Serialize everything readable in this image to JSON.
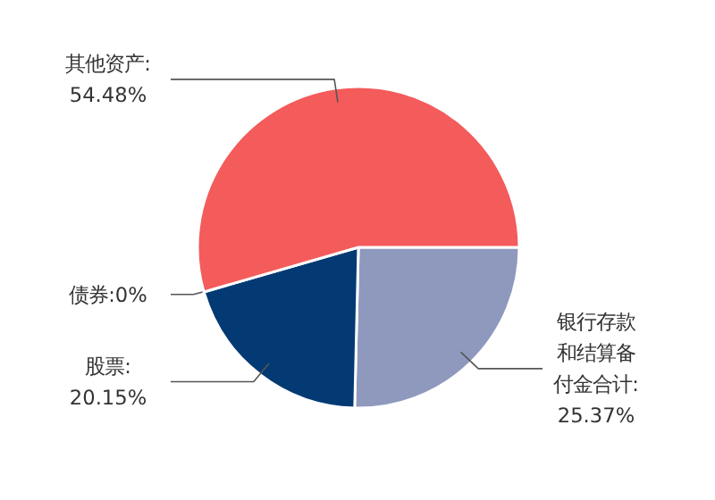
{
  "chart_data": {
    "type": "pie",
    "categories": [
      "银行存款和结算备付金合计",
      "股票",
      "债券",
      "其他资产"
    ],
    "values": [
      25.37,
      20.15,
      0,
      54.48
    ],
    "value_labels": [
      ":25.37%",
      ":20.15%",
      ":0%",
      ":54.48%"
    ],
    "colors": [
      "#8e99bd",
      "#033a74",
      "#7cb5ec",
      "#f45b5b"
    ]
  }
}
